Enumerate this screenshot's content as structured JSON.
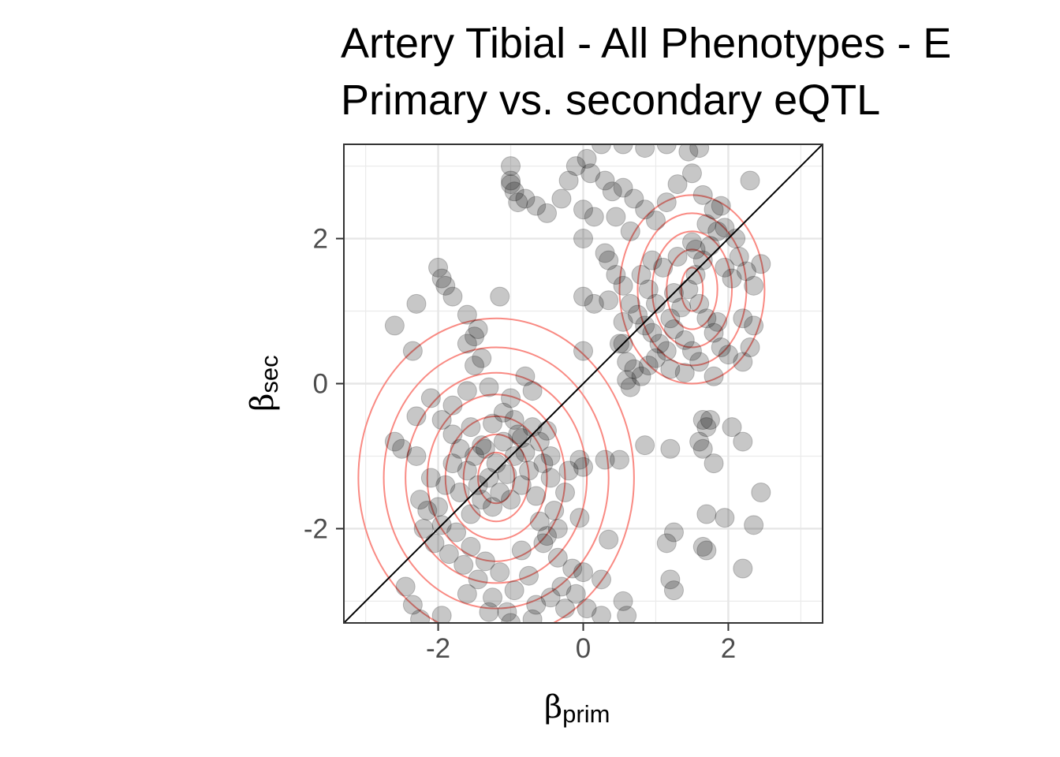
{
  "chart_data": {
    "type": "scatter",
    "title": "Artery Tibial - All Phenotypes - E",
    "subtitle": "Primary vs. secondary eQTL",
    "xlabel_symbol": "β",
    "xlabel_sub": "prim",
    "ylabel_symbol": "β",
    "ylabel_sub": "sec",
    "xlim": [
      -3.3,
      3.3
    ],
    "ylim": [
      -3.3,
      3.3
    ],
    "x_ticks": [
      -2,
      0,
      2
    ],
    "y_ticks": [
      -2,
      0,
      2
    ],
    "x_tick_labels": [
      "-2",
      "0",
      "2"
    ],
    "y_tick_labels": [
      "-2",
      "0",
      "2"
    ],
    "grid": true,
    "identity_line": true,
    "point_color": "#000000",
    "contour_color": "#f8766d",
    "density_contours": [
      {
        "center": [
          -1.2,
          -1.3
        ],
        "levels": [
          [
            0.25,
            0.35
          ],
          [
            0.45,
            0.6
          ],
          [
            0.7,
            0.85
          ],
          [
            0.95,
            1.15
          ],
          [
            1.25,
            1.45
          ],
          [
            1.55,
            1.8
          ],
          [
            1.9,
            2.2
          ]
        ]
      },
      {
        "center": [
          1.5,
          1.3
        ],
        "levels": [
          [
            0.15,
            0.3
          ],
          [
            0.35,
            0.55
          ],
          [
            0.55,
            0.8
          ],
          [
            0.75,
            1.05
          ],
          [
            1.0,
            1.3
          ]
        ]
      }
    ],
    "series": [
      {
        "points": [
          [
            -2.6,
            0.8
          ],
          [
            -2.3,
            1.1
          ],
          [
            -2.0,
            1.6
          ],
          [
            -1.95,
            1.45
          ],
          [
            -1.9,
            1.35
          ],
          [
            -1.8,
            1.2
          ],
          [
            -1.6,
            0.95
          ],
          [
            -1.5,
            0.65
          ],
          [
            -1.45,
            0.75
          ],
          [
            -1.6,
            0.55
          ],
          [
            -1.15,
            1.2
          ],
          [
            -2.35,
            0.45
          ],
          [
            -2.6,
            -0.8
          ],
          [
            -2.5,
            -0.9
          ],
          [
            -2.3,
            -0.45
          ],
          [
            -2.1,
            -0.2
          ],
          [
            -1.8,
            -0.3
          ],
          [
            -1.6,
            -0.1
          ],
          [
            -1.3,
            -0.05
          ],
          [
            -1.4,
            0.35
          ],
          [
            -1.5,
            0.25
          ],
          [
            -0.8,
            0.1
          ],
          [
            -0.7,
            -0.1
          ],
          [
            -1.0,
            -0.2
          ],
          [
            -2.1,
            -1.3
          ],
          [
            -2.0,
            -1.7
          ],
          [
            -1.9,
            -1.4
          ],
          [
            -1.8,
            -1.1
          ],
          [
            -1.7,
            -1.5
          ],
          [
            -1.6,
            -1.2
          ],
          [
            -1.55,
            -1.8
          ],
          [
            -1.5,
            -1.0
          ],
          [
            -1.45,
            -1.4
          ],
          [
            -1.4,
            -1.6
          ],
          [
            -1.35,
            -0.9
          ],
          [
            -1.3,
            -1.3
          ],
          [
            -1.25,
            -1.7
          ],
          [
            -1.2,
            -1.1
          ],
          [
            -1.15,
            -1.5
          ],
          [
            -1.1,
            -0.8
          ],
          [
            -1.05,
            -1.25
          ],
          [
            -1.0,
            -1.6
          ],
          [
            -0.95,
            -1.0
          ],
          [
            -0.9,
            -0.7
          ],
          [
            -0.85,
            -1.4
          ],
          [
            -0.8,
            -0.95
          ],
          [
            -0.75,
            -1.2
          ],
          [
            -0.7,
            -0.6
          ],
          [
            -0.65,
            -1.55
          ],
          [
            -0.6,
            -1.9
          ],
          [
            -0.55,
            -1.1
          ],
          [
            -0.5,
            -2.1
          ],
          [
            -0.45,
            -1.3
          ],
          [
            -0.4,
            -1.75
          ],
          [
            -0.35,
            -2.4
          ],
          [
            -0.3,
            -2.8
          ],
          [
            -0.25,
            -1.5
          ],
          [
            -0.2,
            -1.2
          ],
          [
            -0.15,
            -2.55
          ],
          [
            -0.1,
            -2.9
          ],
          [
            -0.05,
            -1.05
          ],
          [
            0.0,
            -1.15
          ],
          [
            -0.05,
            -1.85
          ],
          [
            0.0,
            -2.6
          ],
          [
            0.3,
            -1.05
          ],
          [
            0.25,
            -2.7
          ],
          [
            0.55,
            -3.0
          ],
          [
            0.6,
            -3.2
          ],
          [
            0.25,
            -3.2
          ],
          [
            0.05,
            -3.1
          ],
          [
            -2.3,
            -1.0
          ],
          [
            -2.25,
            -1.6
          ],
          [
            -2.2,
            -2.0
          ],
          [
            -2.15,
            -1.75
          ],
          [
            -2.05,
            -2.2
          ],
          [
            -1.95,
            -1.95
          ],
          [
            -1.85,
            -2.35
          ],
          [
            -1.75,
            -2.05
          ],
          [
            -1.65,
            -2.5
          ],
          [
            -1.55,
            -2.25
          ],
          [
            -1.45,
            -2.7
          ],
          [
            -1.35,
            -2.45
          ],
          [
            -1.25,
            -2.95
          ],
          [
            -1.15,
            -2.6
          ],
          [
            -1.05,
            -3.15
          ],
          [
            -0.95,
            -2.85
          ],
          [
            -0.85,
            -2.3
          ],
          [
            -0.75,
            -2.65
          ],
          [
            -0.65,
            -3.05
          ],
          [
            -0.55,
            -2.2
          ],
          [
            -0.45,
            -2.95
          ],
          [
            -0.35,
            -2.0
          ],
          [
            -0.25,
            -3.1
          ],
          [
            -2.45,
            -2.8
          ],
          [
            -2.35,
            -3.05
          ],
          [
            -2.25,
            -3.25
          ],
          [
            -1.95,
            -3.2
          ],
          [
            -1.6,
            -2.9
          ],
          [
            -1.3,
            -3.15
          ],
          [
            -1.0,
            -3.3
          ],
          [
            -0.7,
            -3.25
          ],
          [
            -1.95,
            -0.5
          ],
          [
            -1.8,
            -0.7
          ],
          [
            -1.7,
            -0.9
          ],
          [
            -1.55,
            -0.6
          ],
          [
            -1.4,
            -0.85
          ],
          [
            -1.25,
            -0.55
          ],
          [
            -1.1,
            -0.4
          ],
          [
            -0.95,
            -0.5
          ],
          [
            -0.85,
            -0.75
          ],
          [
            -0.6,
            -0.8
          ],
          [
            -0.5,
            -0.65
          ],
          [
            -0.45,
            -1.0
          ],
          [
            -1.0,
            2.8
          ],
          [
            -1.0,
            2.75
          ],
          [
            -0.95,
            2.65
          ],
          [
            -0.9,
            2.5
          ],
          [
            -0.8,
            2.55
          ],
          [
            -0.65,
            2.45
          ],
          [
            -0.5,
            2.35
          ],
          [
            -0.3,
            2.55
          ],
          [
            -0.2,
            2.8
          ],
          [
            -0.1,
            3.0
          ],
          [
            0.05,
            3.1
          ],
          [
            -1.0,
            3.0
          ],
          [
            0.1,
            2.9
          ],
          [
            0.3,
            2.8
          ],
          [
            0.4,
            2.65
          ],
          [
            0.55,
            2.7
          ],
          [
            0.7,
            2.55
          ],
          [
            0.85,
            2.4
          ],
          [
            1.0,
            2.25
          ],
          [
            1.15,
            2.5
          ],
          [
            1.3,
            2.75
          ],
          [
            1.5,
            2.9
          ],
          [
            1.65,
            2.6
          ],
          [
            1.8,
            2.4
          ],
          [
            1.95,
            2.15
          ],
          [
            0.25,
            3.3
          ],
          [
            0.55,
            3.3
          ],
          [
            0.85,
            3.25
          ],
          [
            1.15,
            3.3
          ],
          [
            1.45,
            3.2
          ],
          [
            1.6,
            3.25
          ],
          [
            0.0,
            2.4
          ],
          [
            0.15,
            2.3
          ],
          [
            0.45,
            2.3
          ],
          [
            0.65,
            2.1
          ],
          [
            0.0,
            2.0
          ],
          [
            0.3,
            1.8
          ],
          [
            0.35,
            1.7
          ],
          [
            0.45,
            1.5
          ],
          [
            0.55,
            1.35
          ],
          [
            0.65,
            1.1
          ],
          [
            0.75,
            0.95
          ],
          [
            0.85,
            0.8
          ],
          [
            0.95,
            0.7
          ],
          [
            1.05,
            0.55
          ],
          [
            1.15,
            0.45
          ],
          [
            1.25,
            0.75
          ],
          [
            1.35,
            1.05
          ],
          [
            1.45,
            1.3
          ],
          [
            1.55,
            1.5
          ],
          [
            1.65,
            1.7
          ],
          [
            1.75,
            1.9
          ],
          [
            1.85,
            2.1
          ],
          [
            1.95,
            1.6
          ],
          [
            2.05,
            1.45
          ],
          [
            2.15,
            1.75
          ],
          [
            2.25,
            1.55
          ],
          [
            2.35,
            1.35
          ],
          [
            2.45,
            1.65
          ],
          [
            1.6,
            1.1
          ],
          [
            1.7,
            0.9
          ],
          [
            1.8,
            0.7
          ],
          [
            1.9,
            0.5
          ],
          [
            1.4,
            0.6
          ],
          [
            1.2,
            0.9
          ],
          [
            1.0,
            1.1
          ],
          [
            0.9,
            1.3
          ],
          [
            0.8,
            1.5
          ],
          [
            1.1,
            1.6
          ],
          [
            1.3,
            1.75
          ],
          [
            1.5,
            1.95
          ],
          [
            1.7,
            2.2
          ],
          [
            1.9,
            2.45
          ],
          [
            2.1,
            2.0
          ],
          [
            2.3,
            2.8
          ],
          [
            0.6,
            0.3
          ],
          [
            0.7,
            0.2
          ],
          [
            0.8,
            0.1
          ],
          [
            0.9,
            0.25
          ],
          [
            1.0,
            0.35
          ],
          [
            1.2,
            0.2
          ],
          [
            1.4,
            0.15
          ],
          [
            1.6,
            0.3
          ],
          [
            1.8,
            0.1
          ],
          [
            2.0,
            0.4
          ],
          [
            2.2,
            0.3
          ],
          [
            2.3,
            0.5
          ],
          [
            2.35,
            0.8
          ],
          [
            2.2,
            0.9
          ],
          [
            0.5,
            0.55
          ],
          [
            0.55,
            0.55
          ],
          [
            0.6,
            0.05
          ],
          [
            0.65,
            -0.05
          ],
          [
            1.65,
            -0.5
          ],
          [
            1.7,
            -0.6
          ],
          [
            1.6,
            -0.8
          ],
          [
            1.75,
            -0.5
          ],
          [
            1.8,
            -1.1
          ],
          [
            1.65,
            -0.9
          ],
          [
            2.05,
            -0.6
          ],
          [
            2.2,
            -0.8
          ],
          [
            0.85,
            -0.85
          ],
          [
            1.2,
            -0.9
          ],
          [
            1.25,
            -2.05
          ],
          [
            1.15,
            -2.2
          ],
          [
            1.65,
            -2.25
          ],
          [
            1.7,
            -2.3
          ],
          [
            1.7,
            -1.8
          ],
          [
            1.95,
            -1.85
          ],
          [
            2.35,
            -1.95
          ],
          [
            2.2,
            -2.55
          ],
          [
            2.45,
            -1.5
          ],
          [
            1.2,
            -2.7
          ],
          [
            1.25,
            -2.85
          ],
          [
            0.35,
            -2.15
          ],
          [
            0.5,
            -1.05
          ],
          [
            0.0,
            1.2
          ],
          [
            0.15,
            1.1
          ],
          [
            0.35,
            1.15
          ],
          [
            0.0,
            0.45
          ],
          [
            0.55,
            0.85
          ],
          [
            0.95,
            1.7
          ],
          [
            1.5,
            0.45
          ],
          [
            1.85,
            0.85
          ],
          [
            1.25,
            1.25
          ],
          [
            1.55,
            1.85
          ]
        ]
      }
    ]
  }
}
